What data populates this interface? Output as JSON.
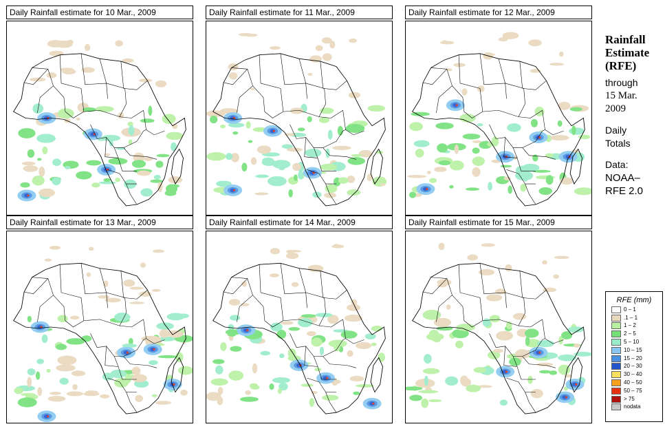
{
  "panels": [
    {
      "title": "Daily Rainfall estimate for  10 Mar., 2009"
    },
    {
      "title": "Daily Rainfall estimate for  11 Mar., 2009"
    },
    {
      "title": "Daily Rainfall estimate for  12 Mar., 2009"
    },
    {
      "title": "Daily Rainfall estimate for  13 Mar., 2009"
    },
    {
      "title": "Daily Rainfall estimate for  14 Mar., 2009"
    },
    {
      "title": "Daily Rainfall estimate for  15 Mar., 2009"
    }
  ],
  "side": {
    "heading_line1": "Rainfall",
    "heading_line2": "Estimate",
    "heading_line3": "(RFE)",
    "through": "through",
    "date_line1": "15 Mar.",
    "date_line2": "2009",
    "daily": "Daily",
    "totals": "Totals",
    "data_label": "Data:",
    "source_line1": "NOAA–",
    "source_line2": "RFE 2.0"
  },
  "legend": {
    "title": "RFE (mm)",
    "items": [
      {
        "label": "0 – 1",
        "color": "#ffffff"
      },
      {
        "label": ".1 – 1",
        "color": "#e8d8bc"
      },
      {
        "label": "1 – 2",
        "color": "#b8f0a0"
      },
      {
        "label": "2 – 5",
        "color": "#74e078"
      },
      {
        "label": "5 – 10",
        "color": "#98ecc8"
      },
      {
        "label": "10 – 15",
        "color": "#88c8f0"
      },
      {
        "label": "15 – 20",
        "color": "#4a90e0"
      },
      {
        "label": "20 – 30",
        "color": "#2255cc"
      },
      {
        "label": "30 – 40",
        "color": "#f8e060"
      },
      {
        "label": "40 – 50",
        "color": "#f8a020"
      },
      {
        "label": "50 – 75",
        "color": "#e83010"
      },
      {
        "label": "> 75",
        "color": "#b01010"
      },
      {
        "label": "nodata",
        "color": "#c8c8c8"
      }
    ]
  }
}
